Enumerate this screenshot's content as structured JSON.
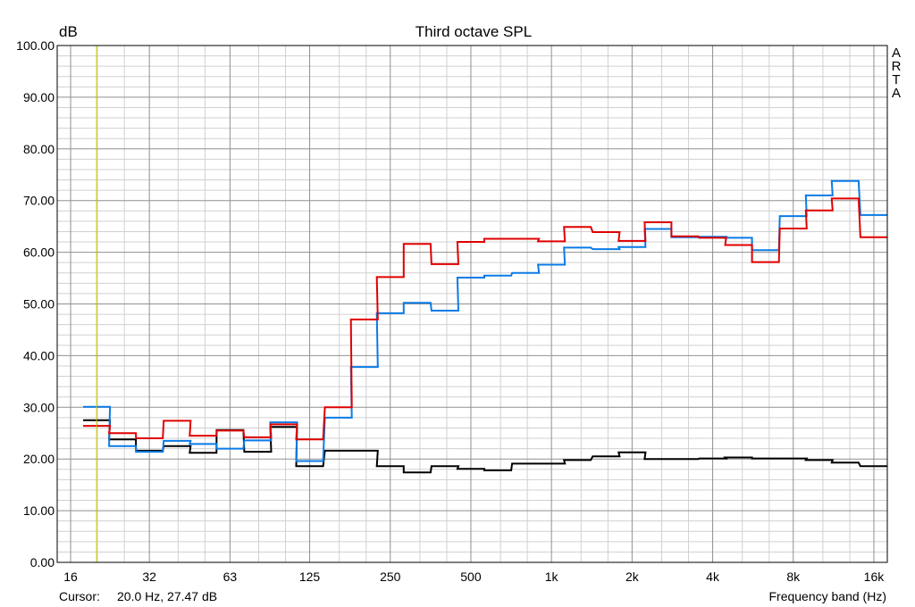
{
  "chart_data": {
    "type": "line",
    "title": "Third octave SPL",
    "ylabel": "dB",
    "xlabel": "Frequency band (Hz)",
    "watermark": [
      "A",
      "R",
      "T",
      "A"
    ],
    "ylim": [
      0,
      100
    ],
    "yticks": [
      "0.00",
      "10.00",
      "20.00",
      "30.00",
      "40.00",
      "50.00",
      "60.00",
      "70.00",
      "80.00",
      "90.00",
      "100.00"
    ],
    "xticks": [
      {
        "hz": 16,
        "label": "16"
      },
      {
        "hz": 31.5,
        "label": "32"
      },
      {
        "hz": 63,
        "label": "63"
      },
      {
        "hz": 125,
        "label": "125"
      },
      {
        "hz": 250,
        "label": "250"
      },
      {
        "hz": 500,
        "label": "500"
      },
      {
        "hz": 1000,
        "label": "1k"
      },
      {
        "hz": 2000,
        "label": "2k"
      },
      {
        "hz": 4000,
        "label": "4k"
      },
      {
        "hz": 8000,
        "label": "8k"
      },
      {
        "hz": 16000,
        "label": "16k"
      }
    ],
    "bands": [
      20,
      25,
      31.5,
      40,
      50,
      63,
      80,
      100,
      125,
      160,
      200,
      250,
      315,
      400,
      500,
      630,
      800,
      1000,
      1250,
      1600,
      2000,
      2500,
      3150,
      4000,
      5000,
      6300,
      8000,
      10000,
      12500,
      16000
    ],
    "grid": true,
    "cursor": {
      "label": "Cursor:",
      "value": "20.0 Hz, 27.47 dB",
      "hz": 20.0,
      "color": "#c8c800"
    },
    "series": [
      {
        "color": "#000000",
        "values": [
          27.5,
          23.8,
          21.6,
          22.5,
          21.2,
          25.6,
          21.4,
          26.2,
          18.6,
          21.6,
          21.6,
          18.6,
          17.4,
          18.6,
          18.1,
          17.8,
          19.1,
          19.1,
          19.8,
          20.5,
          21.3,
          20.0,
          20.0,
          20.1,
          20.3,
          20.1,
          20.1,
          19.8,
          19.3,
          18.6
        ]
      },
      {
        "color": "#0a7be6",
        "values": [
          30.1,
          22.5,
          21.4,
          23.5,
          22.9,
          22.0,
          23.6,
          27.1,
          19.6,
          28.0,
          37.8,
          48.2,
          50.2,
          48.7,
          55.1,
          55.5,
          56.0,
          57.6,
          60.9,
          60.6,
          61.0,
          64.5,
          62.9,
          63.0,
          62.8,
          60.4,
          67.0,
          71.0,
          73.8,
          67.2
        ]
      },
      {
        "color": "#e00000",
        "values": [
          26.4,
          25.0,
          24.0,
          27.4,
          24.5,
          25.5,
          24.2,
          26.7,
          23.8,
          30.0,
          47.0,
          55.2,
          61.6,
          57.7,
          62.0,
          62.6,
          62.6,
          62.1,
          64.9,
          63.9,
          62.2,
          65.8,
          63.1,
          62.8,
          61.4,
          58.1,
          64.6,
          68.1,
          70.4,
          62.9
        ]
      }
    ]
  }
}
